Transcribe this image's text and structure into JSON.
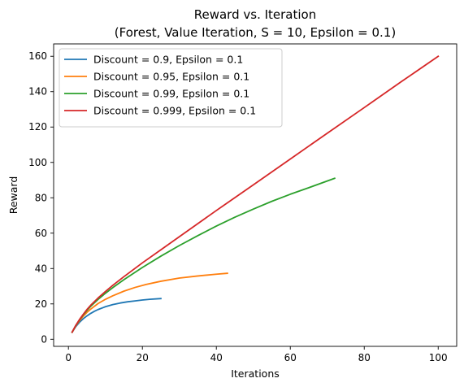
{
  "chart_data": {
    "type": "line",
    "title_line1": "Reward vs. Iteration",
    "title_line2": "(Forest, Value Iteration, S = 10, Epsilon = 0.1)",
    "xlabel": "Iterations",
    "ylabel": "Reward",
    "xlim": [
      -4,
      105
    ],
    "ylim": [
      -4,
      167
    ],
    "xticks": [
      0,
      20,
      40,
      60,
      80,
      100
    ],
    "yticks": [
      0,
      20,
      40,
      60,
      80,
      100,
      120,
      140,
      160
    ],
    "grid": false,
    "legend_position": "top-left",
    "series": [
      {
        "name": "Discount = 0.9, Epsilon = 0.1",
        "color": "#1f77b4",
        "x": [
          1,
          2,
          3,
          4,
          5,
          6,
          7,
          8,
          10,
          12,
          14,
          16,
          18,
          20,
          22,
          25
        ],
        "y": [
          4,
          7.2,
          9.6,
          11.6,
          13.2,
          14.6,
          15.8,
          16.8,
          18.4,
          19.6,
          20.5,
          21.2,
          21.7,
          22.2,
          22.6,
          23.0
        ]
      },
      {
        "name": "Discount = 0.95, Epsilon = 0.1",
        "color": "#ff7f0e",
        "x": [
          1,
          2,
          3,
          4,
          5,
          6,
          8,
          10,
          12,
          15,
          18,
          21,
          25,
          30,
          35,
          40,
          43
        ],
        "y": [
          4,
          7.6,
          10.5,
          13.0,
          15.2,
          17.0,
          20.2,
          22.6,
          24.6,
          27.2,
          29.3,
          31.0,
          32.8,
          34.6,
          35.8,
          36.8,
          37.3
        ]
      },
      {
        "name": "Discount = 0.99, Epsilon = 0.1",
        "color": "#2ca02c",
        "x": [
          1,
          2,
          3,
          4,
          5,
          6,
          8,
          10,
          12,
          15,
          20,
          25,
          30,
          35,
          40,
          45,
          50,
          55,
          60,
          65,
          72
        ],
        "y": [
          4,
          7.8,
          11.0,
          13.8,
          16.3,
          18.6,
          22.5,
          26.0,
          29.2,
          33.7,
          40.6,
          47.0,
          53.0,
          58.6,
          64.0,
          69.0,
          73.6,
          78.0,
          82.0,
          85.7,
          91.0
        ]
      },
      {
        "name": "Discount = 0.999, Epsilon = 0.1",
        "color": "#d62728",
        "x": [
          1,
          2,
          3,
          4,
          5,
          6,
          8,
          10,
          12,
          15,
          20,
          25,
          30,
          40,
          50,
          60,
          70,
          80,
          90,
          100
        ],
        "y": [
          4,
          7.9,
          11.2,
          14.1,
          16.8,
          19.2,
          23.3,
          27.0,
          30.5,
          35.4,
          43.2,
          50.6,
          58.0,
          72.8,
          87.3,
          101.9,
          116.5,
          131.0,
          145.6,
          160.0
        ]
      }
    ]
  }
}
